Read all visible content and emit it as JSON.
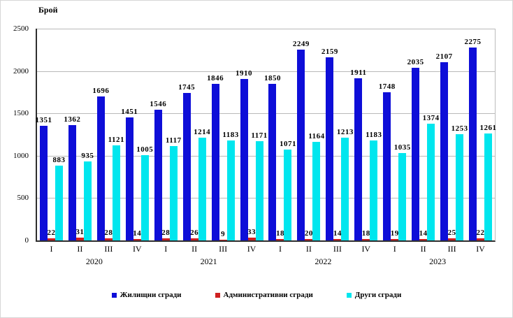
{
  "chart_data": {
    "type": "bar",
    "title": "",
    "ylabel": "Брой",
    "xlabel": "",
    "ylim": [
      0,
      2500
    ],
    "yticks": [
      0,
      500,
      1000,
      1500,
      2000,
      2500
    ],
    "grid": true,
    "legend_position": "bottom",
    "categories": [
      "I",
      "II",
      "III",
      "IV",
      "I",
      "II",
      "III",
      "IV",
      "I",
      "II",
      "III",
      "IV",
      "I",
      "II",
      "III",
      "IV"
    ],
    "year_groups": [
      {
        "label": "2020"
      },
      {
        "label": "2021"
      },
      {
        "label": "2022"
      },
      {
        "label": "2023"
      }
    ],
    "series": [
      {
        "key": "residential-buildings",
        "name": "Жилищни сгради",
        "color": "#0e0ed8",
        "values": [
          1351,
          1362,
          1696,
          1451,
          1546,
          1745,
          1846,
          1910,
          1850,
          2249,
          2159,
          1911,
          1748,
          2035,
          2107,
          2275
        ]
      },
      {
        "key": "administrative-buildings",
        "name": "Административни сгради",
        "color": "#cf2020",
        "values": [
          22,
          31,
          28,
          14,
          28,
          26,
          9,
          33,
          18,
          20,
          14,
          18,
          19,
          14,
          25,
          22
        ]
      },
      {
        "key": "other-buildings",
        "name": "Други сгради",
        "color": "#00e6ee",
        "values": [
          883,
          935,
          1121,
          1005,
          1117,
          1214,
          1183,
          1171,
          1071,
          1164,
          1213,
          1183,
          1035,
          1374,
          1253,
          1261
        ]
      }
    ]
  }
}
